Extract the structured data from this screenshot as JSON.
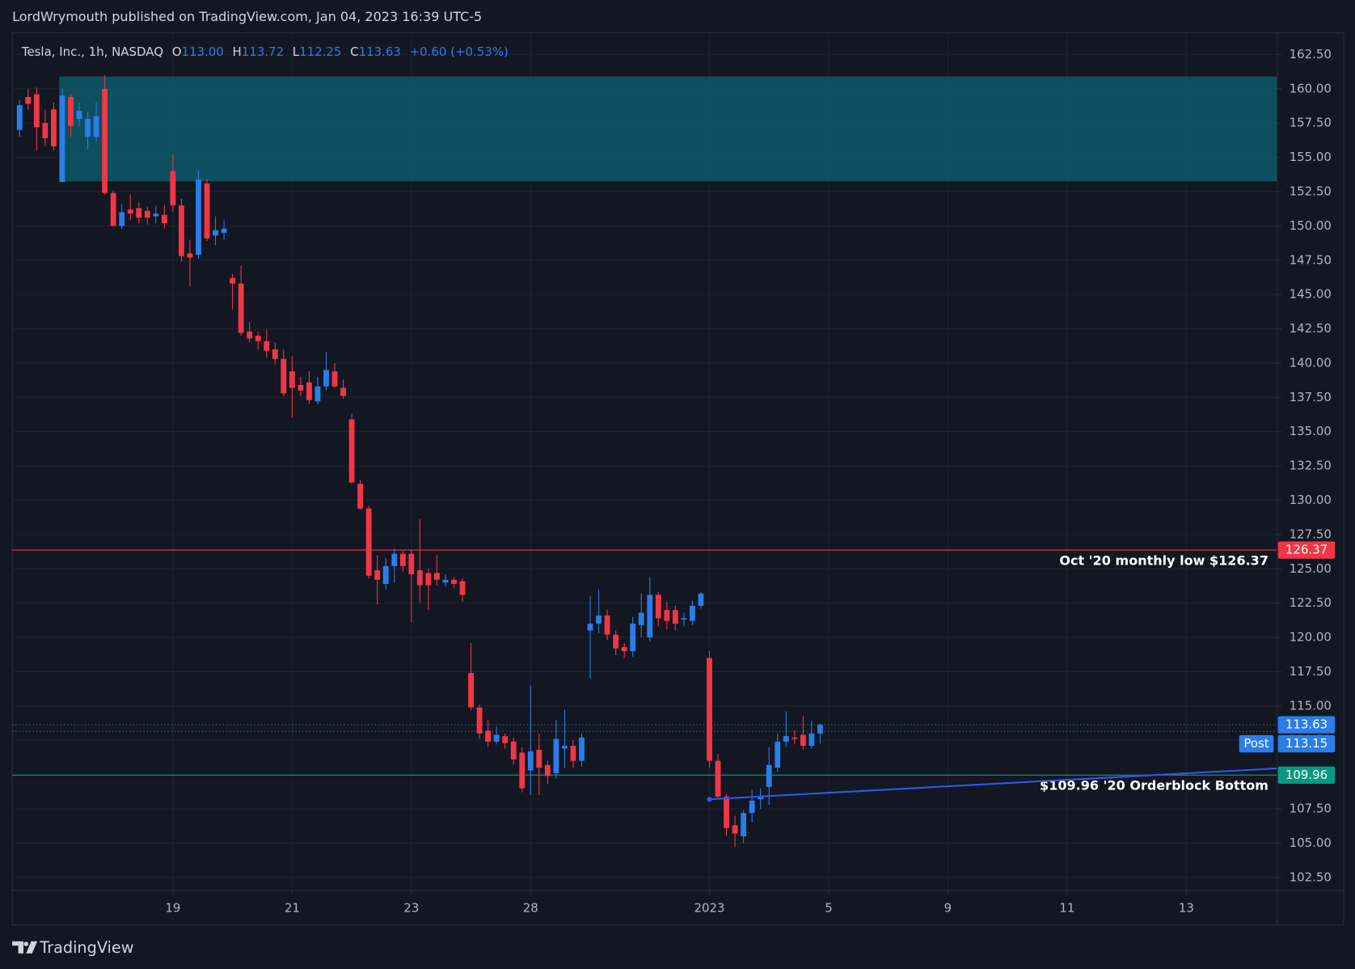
{
  "header": {
    "text": "LordWrymouth published on TradingView.com, Jan 04, 2023 16:39 UTC-5"
  },
  "footer": {
    "brand": "TradingView"
  },
  "chart_data": {
    "type": "candlestick",
    "symbol": "Tesla, Inc., 1h, NASDAQ",
    "legend": [
      {
        "key": "O",
        "value": "113.00"
      },
      {
        "key": "H",
        "value": "113.72"
      },
      {
        "key": "L",
        "value": "112.25"
      },
      {
        "key": "C",
        "value": "113.63"
      }
    ],
    "change": "+0.60 (+0.53%)",
    "up_color": "#2b7de9",
    "down_color": "#f23645",
    "x": [
      1,
      2,
      3,
      4,
      5,
      6,
      7,
      8,
      9,
      10,
      11,
      12,
      13,
      14,
      15,
      16,
      17,
      18,
      19,
      20,
      21,
      22,
      23,
      24,
      25,
      26,
      27,
      28,
      29,
      30,
      31,
      32,
      33,
      34,
      35,
      36,
      37,
      38,
      39,
      40,
      41,
      42,
      43,
      44,
      45,
      46,
      47,
      48,
      49,
      50,
      51,
      52,
      53,
      54,
      55,
      56,
      57,
      58,
      59,
      60,
      61,
      62,
      63,
      64,
      65,
      66,
      67,
      68,
      69,
      70,
      71,
      72,
      73,
      74,
      75,
      76,
      77,
      78,
      79,
      80,
      81,
      82,
      83,
      84,
      85,
      86,
      87,
      88,
      89,
      90,
      91,
      92,
      93,
      94,
      95
    ],
    "open": [
      157.0,
      159.4,
      159.6,
      157.5,
      158.5,
      153.2,
      159.4,
      157.8,
      156.5,
      156.5,
      160.0,
      152.4,
      150.0,
      151.2,
      151.3,
      151.1,
      150.7,
      150.8,
      154.0,
      151.5,
      148.0,
      147.9,
      153.1,
      149.3,
      149.5,
      146.2,
      145.8,
      142.3,
      142.0,
      141.6,
      141.0,
      140.3,
      139.4,
      138.4,
      138.6,
      137.2,
      138.3,
      139.4,
      138.2,
      135.9,
      131.2,
      129.4,
      124.9,
      123.9,
      125.2,
      126.1,
      126.1,
      124.9,
      124.7,
      124.7,
      124.0,
      124.2,
      124.1,
      117.4,
      114.9,
      113.2,
      112.4,
      112.8,
      112.4,
      111.6,
      110.3,
      111.8,
      110.7,
      110.1,
      111.9,
      112.1,
      111.0,
      120.5,
      121.0,
      121.6,
      120.2,
      119.3,
      119.0,
      120.9,
      120.0,
      123.1,
      122.0,
      122.0,
      121.3,
      121.2,
      122.3,
      118.5,
      111.0,
      108.4,
      106.3,
      105.5,
      107.2,
      108.2,
      109.1,
      110.5,
      112.4,
      112.7,
      112.9,
      112.1,
      113.0
    ],
    "high": [
      159.2,
      160.0,
      160.1,
      158.5,
      159.0,
      160.0,
      159.6,
      159.0,
      158.3,
      159.0,
      161.0,
      152.6,
      151.6,
      152.3,
      151.7,
      151.4,
      151.5,
      151.5,
      155.2,
      152.0,
      149.0,
      154.0,
      153.4,
      150.7,
      150.4,
      146.5,
      147.1,
      143.0,
      142.3,
      142.5,
      141.5,
      141.0,
      140.5,
      139.0,
      139.4,
      139.0,
      140.8,
      140.0,
      138.8,
      136.3,
      131.5,
      129.6,
      126.0,
      125.8,
      126.5,
      126.3,
      126.4,
      128.6,
      125.0,
      126.0,
      124.6,
      124.4,
      124.3,
      119.6,
      115.1,
      114.0,
      113.5,
      113.0,
      112.7,
      112.0,
      116.5,
      113.0,
      111.0,
      114.0,
      114.7,
      112.5,
      113.0,
      123.0,
      123.5,
      122.0,
      120.5,
      119.6,
      121.5,
      123.2,
      124.4,
      123.3,
      122.6,
      122.3,
      121.8,
      122.7,
      123.3,
      119.0,
      111.5,
      108.6,
      107.0,
      107.4,
      108.9,
      109.0,
      112.0,
      113.0,
      114.6,
      113.2,
      114.3,
      113.9,
      113.72
    ],
    "low": [
      156.5,
      158.5,
      155.5,
      155.8,
      155.5,
      153.2,
      156.5,
      157.3,
      155.6,
      156.2,
      152.3,
      150.0,
      149.8,
      150.4,
      150.2,
      150.1,
      150.2,
      149.8,
      151.0,
      147.4,
      145.6,
      147.6,
      148.9,
      148.6,
      149.0,
      143.9,
      142.0,
      141.5,
      141.0,
      140.4,
      139.9,
      137.6,
      136.0,
      137.6,
      137.0,
      137.0,
      138.0,
      138.2,
      137.4,
      131.2,
      129.3,
      124.3,
      122.4,
      123.5,
      124.0,
      124.8,
      121.1,
      122.5,
      122.0,
      123.8,
      123.7,
      123.6,
      122.6,
      114.7,
      112.6,
      112.0,
      112.2,
      111.9,
      110.7,
      108.7,
      108.5,
      108.5,
      109.3,
      109.7,
      110.5,
      110.5,
      110.6,
      117.0,
      120.3,
      119.8,
      118.7,
      118.5,
      118.6,
      120.0,
      119.7,
      120.8,
      120.6,
      120.5,
      120.8,
      120.9,
      122.1,
      110.5,
      108.2,
      105.5,
      104.7,
      105.0,
      106.5,
      107.5,
      107.8,
      110.2,
      112.0,
      112.2,
      111.8,
      111.9,
      112.25
    ],
    "close": [
      158.8,
      158.9,
      157.2,
      156.4,
      155.8,
      159.5,
      157.3,
      158.4,
      157.8,
      158.0,
      152.4,
      150.0,
      151.0,
      150.9,
      150.6,
      150.6,
      150.9,
      150.2,
      151.5,
      147.8,
      147.7,
      153.4,
      149.1,
      149.7,
      149.8,
      145.8,
      142.2,
      141.8,
      141.6,
      140.9,
      140.3,
      137.8,
      138.2,
      138.0,
      137.3,
      138.3,
      139.5,
      138.3,
      137.6,
      131.3,
      129.4,
      124.5,
      124.2,
      125.2,
      126.1,
      125.2,
      124.6,
      123.8,
      123.8,
      124.2,
      124.2,
      123.9,
      123.1,
      114.9,
      113.0,
      112.4,
      112.9,
      112.3,
      111.1,
      109.0,
      111.7,
      110.5,
      109.9,
      112.6,
      112.1,
      111.0,
      112.7,
      121.0,
      121.6,
      120.2,
      119.2,
      119.0,
      121.0,
      121.8,
      123.1,
      121.4,
      121.2,
      121.0,
      121.4,
      122.3,
      123.2,
      111.0,
      108.4,
      106.1,
      105.7,
      107.2,
      108.1,
      108.4,
      110.7,
      112.4,
      112.8,
      112.6,
      112.1,
      113.0,
      113.63
    ],
    "xlim": [
      0.13,
      148.66
    ],
    "xticks": [
      19,
      {
        "value": 33,
        "label": "21"
      },
      {
        "value": 47,
        "label": "23"
      },
      {
        "value": 61,
        "label": "28"
      },
      {
        "value": 82,
        "label": "2023"
      },
      {
        "value": 96,
        "label": "5"
      },
      {
        "value": 110,
        "label": "9"
      },
      {
        "value": 124,
        "label": "11"
      },
      {
        "value": 138,
        "label": "13"
      }
    ],
    "ylim": [
      101.56,
      164.08
    ],
    "yticks": [
      {
        "value": 102.5,
        "label": "102.50"
      },
      {
        "value": 105,
        "label": "105.00"
      },
      {
        "value": 107.5,
        "label": "107.50"
      },
      {
        "value": 110,
        "label": "110.00"
      },
      {
        "value": 112.5,
        "label": "112.50"
      },
      {
        "value": 115,
        "label": "115.00"
      },
      {
        "value": 117.5,
        "label": "117.50"
      },
      {
        "value": 120,
        "label": "120.00"
      },
      {
        "value": 122.5,
        "label": "122.50"
      },
      {
        "value": 125,
        "label": "125.00"
      },
      {
        "value": 127.5,
        "label": "127.50"
      },
      {
        "value": 130,
        "label": "130.00"
      },
      {
        "value": 132.5,
        "label": "132.50"
      },
      {
        "value": 135,
        "label": "135.00"
      },
      {
        "value": 137.5,
        "label": "137.50"
      },
      {
        "value": 140,
        "label": "140.00"
      },
      {
        "value": 142.5,
        "label": "142.50"
      },
      {
        "value": 145,
        "label": "145.00"
      },
      {
        "value": 147.5,
        "label": "147.50"
      },
      {
        "value": 150,
        "label": "150.00"
      },
      {
        "value": 152.5,
        "label": "152.50"
      },
      {
        "value": 155,
        "label": "155.00"
      },
      {
        "value": 157.5,
        "label": "157.50"
      },
      {
        "value": 160,
        "label": "160.00"
      },
      {
        "value": 162.5,
        "label": "162.50"
      }
    ],
    "grid": true,
    "zone": {
      "x_start": 5.65,
      "top": 160.9,
      "bottom": 153.25,
      "color": "#0e5566"
    },
    "levels": [
      {
        "value": 126.37,
        "color": "#f23645",
        "annotation": "Oct '20 monthly low $126.37"
      },
      {
        "value": 109.96,
        "color": "#089981",
        "annotation": "$109.96 '20 Orderblock Bottom"
      }
    ],
    "price_lines": [
      {
        "value": 113.63,
        "color": "#2b7de9"
      },
      {
        "value": 113.15,
        "tag": "Post",
        "color": "#2b7de9"
      }
    ],
    "trendline": {
      "x": [
        82,
        148.66
      ],
      "y": [
        108.2,
        110.45
      ],
      "color": "#2f57e6"
    }
  }
}
